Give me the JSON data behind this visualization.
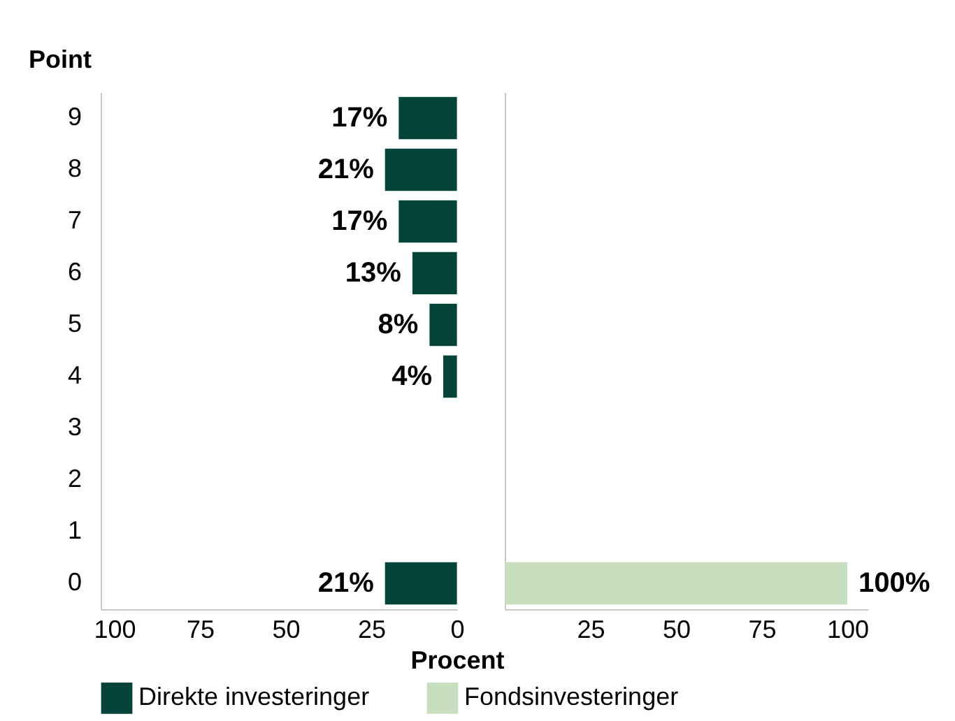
{
  "chart_data": [
    {
      "type": "bar",
      "orientation": "horizontal",
      "ylabel": "Point",
      "xlabel": "Procent",
      "categories": [
        "9",
        "8",
        "7",
        "6",
        "5",
        "4",
        "3",
        "2",
        "1",
        "0"
      ],
      "series": [
        {
          "name": "Direkte investeringer",
          "color": "#04433a",
          "values": [
            17,
            21,
            17,
            13,
            8,
            4,
            null,
            null,
            null,
            21
          ],
          "value_labels": [
            "17%",
            "21%",
            "17%",
            "13%",
            "8%",
            "4%",
            null,
            null,
            null,
            "21%"
          ]
        }
      ],
      "xlim": [
        104,
        0
      ],
      "xticks": [
        100,
        75,
        50,
        25,
        0
      ],
      "legend": "bottom"
    },
    {
      "type": "bar",
      "orientation": "horizontal",
      "categories": [
        "9",
        "8",
        "7",
        "6",
        "5",
        "4",
        "3",
        "2",
        "1",
        "0"
      ],
      "series": [
        {
          "name": "Fondsinvesteringer",
          "color": "#c7dfbf",
          "values": [
            null,
            null,
            null,
            null,
            null,
            null,
            null,
            null,
            null,
            100
          ],
          "value_labels": [
            null,
            null,
            null,
            null,
            null,
            null,
            null,
            null,
            null,
            "100%"
          ]
        }
      ],
      "xlim": [
        0,
        106
      ],
      "xticks": [
        25,
        50,
        75,
        100
      ],
      "tick_labels": "x",
      "legend": "bottom"
    }
  ]
}
